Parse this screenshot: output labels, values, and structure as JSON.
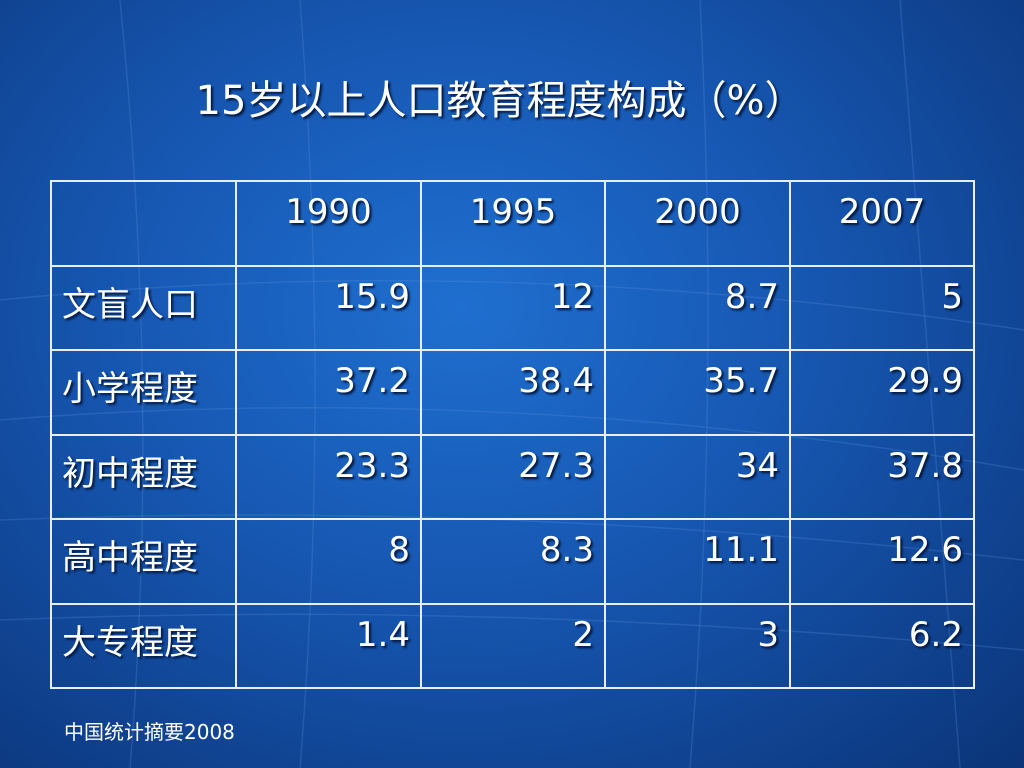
{
  "title": "15岁以上人口教育程度构成（%）",
  "table": {
    "header": [
      "",
      "1990",
      "1995",
      "2000",
      "2007"
    ],
    "rows": [
      [
        "文盲人口",
        "15.9",
        "12",
        "8.7",
        "5"
      ],
      [
        "小学程度",
        "37.2",
        "38.4",
        "35.7",
        "29.9"
      ],
      [
        "初中程度",
        "23.3",
        "27.3",
        "34",
        "37.8"
      ],
      [
        "高中程度",
        "8",
        "8.3",
        "11.1",
        "12.6"
      ],
      [
        "大专程度",
        "1.4",
        "2",
        "3",
        "6.2"
      ]
    ]
  },
  "footnote": "中国统计摘要2008"
}
